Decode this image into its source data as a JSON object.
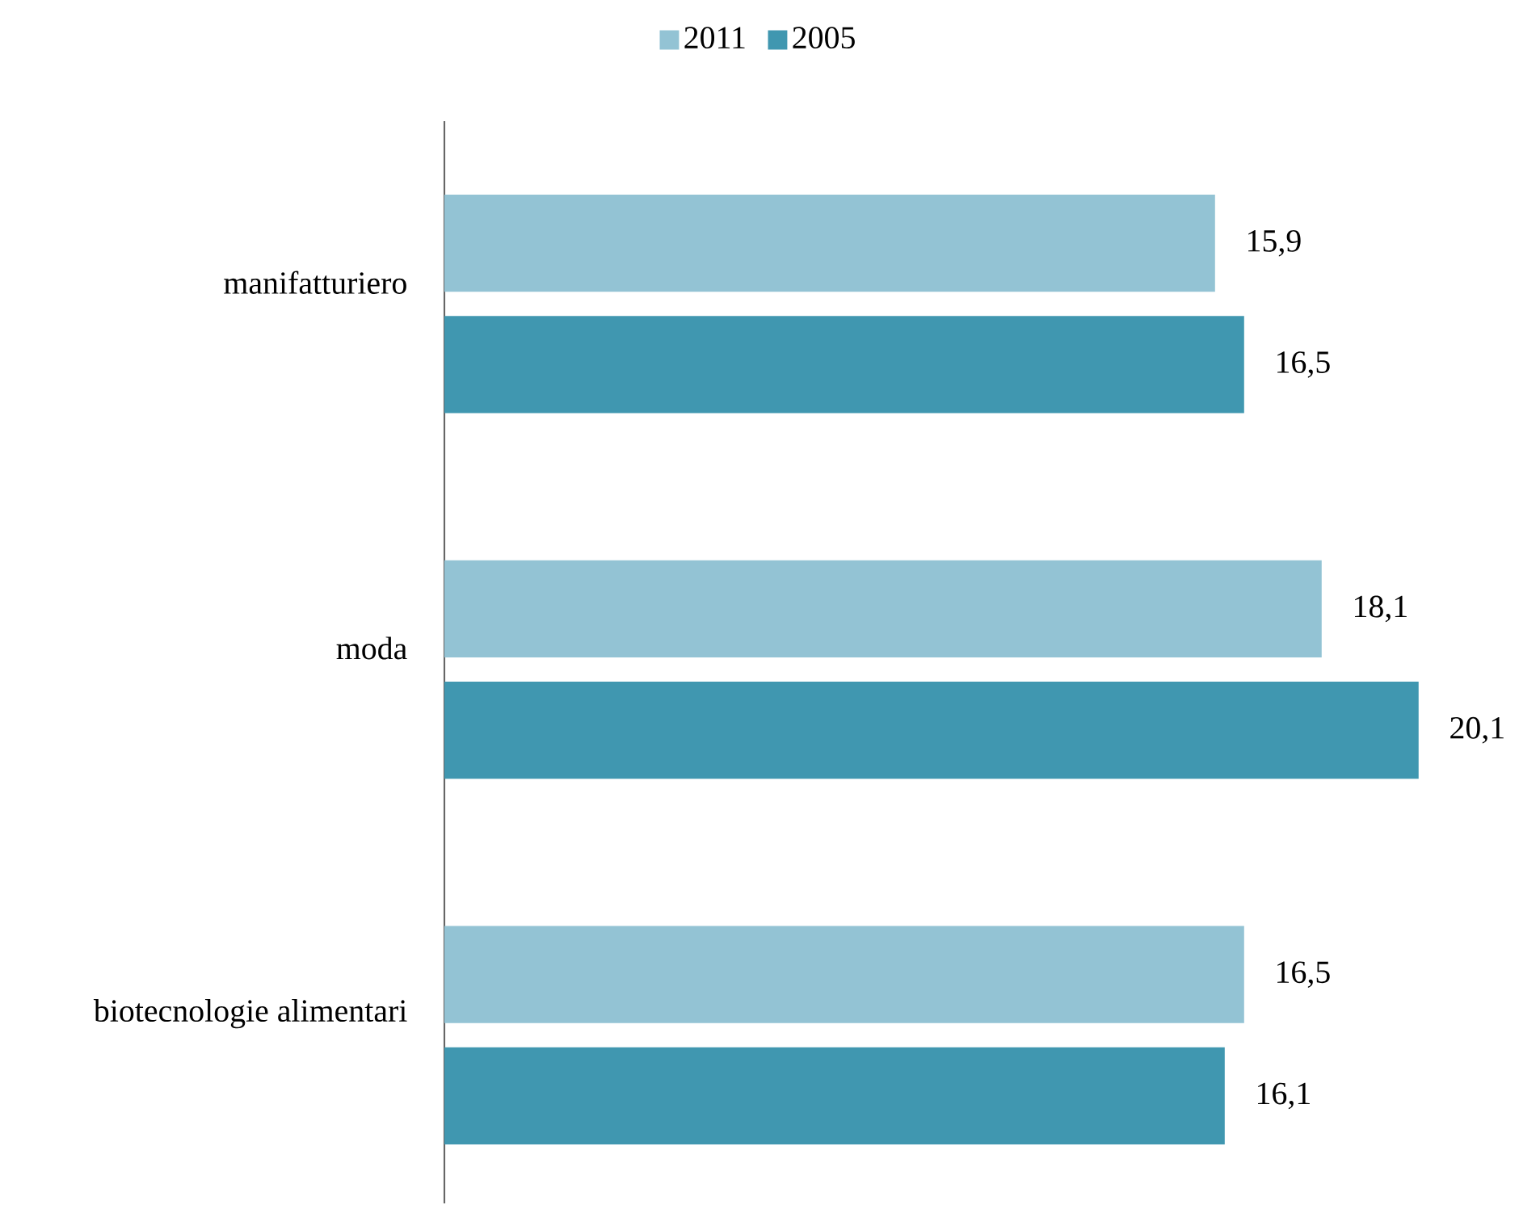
{
  "chart_data": {
    "type": "bar",
    "orientation": "horizontal",
    "categories": [
      "manifatturiero",
      "moda",
      "biotecnologie alimentari"
    ],
    "series": [
      {
        "name": "2011",
        "color": "#93c3d4",
        "values": [
          15.9,
          18.1,
          16.5
        ],
        "value_labels": [
          "15,9",
          "18,1",
          "16,5"
        ]
      },
      {
        "name": "2005",
        "color": "#4097b0",
        "values": [
          16.5,
          20.1,
          16.1
        ],
        "value_labels": [
          "16,5",
          "20,1",
          "16,1"
        ]
      }
    ],
    "legend": "top"
  }
}
